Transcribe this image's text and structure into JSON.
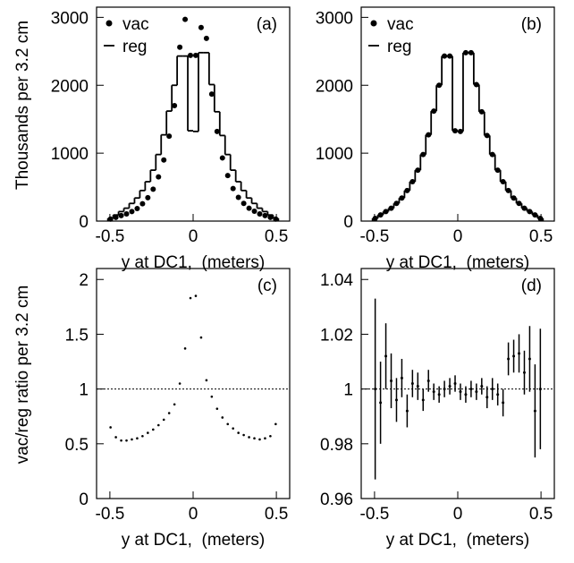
{
  "chart_data": [
    {
      "type": "histogram",
      "title": "(a)",
      "ylabel": "Thousands per 3.2 cm",
      "xlabel": "y at DC1,  (meters)",
      "xlim": [
        -0.58,
        0.58
      ],
      "xticks": [
        -0.5,
        0,
        0.5
      ],
      "ylim": [
        0,
        3150
      ],
      "yticks": [
        0,
        1000,
        2000,
        3000
      ],
      "bins": [
        -0.512,
        -0.48,
        -0.448,
        -0.416,
        -0.384,
        -0.352,
        -0.32,
        -0.288,
        -0.256,
        -0.224,
        -0.192,
        -0.16,
        -0.128,
        -0.096,
        -0.064,
        -0.032,
        0,
        0.032,
        0.064,
        0.096,
        0.128,
        0.16,
        0.192,
        0.224,
        0.256,
        0.288,
        0.32,
        0.352,
        0.384,
        0.416,
        0.448,
        0.48,
        0.512
      ],
      "series": [
        {
          "name": "vac",
          "style": "points",
          "color": "#000000",
          "values": [
            30,
            55,
            80,
            105,
            140,
            185,
            255,
            345,
            470,
            650,
            900,
            1250,
            1700,
            2560,
            2970,
            2440,
            2440,
            2850,
            2690,
            1870,
            1320,
            930,
            670,
            480,
            350,
            260,
            190,
            145,
            105,
            80,
            55,
            30
          ]
        },
        {
          "name": "reg",
          "style": "step",
          "color": "#000000",
          "values": [
            40,
            90,
            140,
            190,
            260,
            340,
            450,
            580,
            750,
            980,
            1270,
            1620,
            2000,
            2430,
            2430,
            1330,
            1320,
            2480,
            2480,
            2010,
            1610,
            1260,
            980,
            750,
            580,
            450,
            340,
            260,
            190,
            140,
            90,
            40
          ]
        }
      ]
    },
    {
      "type": "histogram",
      "title": "(b)",
      "xlabel": "y at DC1,  (meters)",
      "xlim": [
        -0.58,
        0.58
      ],
      "xticks": [
        -0.5,
        0,
        0.5
      ],
      "ylim": [
        0,
        3150
      ],
      "yticks": [
        0,
        1000,
        2000,
        3000
      ],
      "bins": [
        -0.512,
        -0.48,
        -0.448,
        -0.416,
        -0.384,
        -0.352,
        -0.32,
        -0.288,
        -0.256,
        -0.224,
        -0.192,
        -0.16,
        -0.128,
        -0.096,
        -0.064,
        -0.032,
        0,
        0.032,
        0.064,
        0.096,
        0.128,
        0.16,
        0.192,
        0.224,
        0.256,
        0.288,
        0.32,
        0.352,
        0.384,
        0.416,
        0.448,
        0.48,
        0.512
      ],
      "series": [
        {
          "name": "vac",
          "style": "points",
          "color": "#000000",
          "values": [
            40,
            90,
            140,
            190,
            260,
            340,
            450,
            580,
            750,
            980,
            1270,
            1620,
            2000,
            2430,
            2430,
            1330,
            1320,
            2480,
            2480,
            2010,
            1610,
            1260,
            980,
            750,
            580,
            450,
            340,
            260,
            190,
            140,
            90,
            40
          ]
        },
        {
          "name": "reg",
          "style": "step",
          "color": "#000000",
          "values": [
            40,
            90,
            140,
            190,
            260,
            340,
            450,
            580,
            750,
            980,
            1270,
            1620,
            2000,
            2430,
            2430,
            1330,
            1320,
            2480,
            2480,
            2010,
            1610,
            1260,
            980,
            750,
            580,
            450,
            340,
            260,
            190,
            140,
            90,
            40
          ]
        }
      ]
    },
    {
      "type": "scatter",
      "title": "(c)",
      "ylabel": "vac/reg ratio per 3.2 cm",
      "xlabel": "y at DC1,  (meters)",
      "xlim": [
        -0.58,
        0.58
      ],
      "xticks": [
        -0.5,
        0,
        0.5
      ],
      "ylim": [
        0,
        2.1
      ],
      "yticks": [
        0,
        0.5,
        1,
        1.5,
        2
      ],
      "refline": 1,
      "color": "#000000",
      "x": [
        -0.496,
        -0.464,
        -0.432,
        -0.4,
        -0.368,
        -0.336,
        -0.304,
        -0.272,
        -0.24,
        -0.208,
        -0.176,
        -0.144,
        -0.112,
        -0.08,
        -0.048,
        -0.016,
        0.016,
        0.048,
        0.08,
        0.112,
        0.144,
        0.176,
        0.208,
        0.24,
        0.272,
        0.304,
        0.336,
        0.368,
        0.4,
        0.432,
        0.464,
        0.496
      ],
      "values": [
        0.65,
        0.56,
        0.53,
        0.53,
        0.54,
        0.55,
        0.57,
        0.6,
        0.63,
        0.67,
        0.72,
        0.78,
        0.86,
        1.05,
        1.37,
        1.83,
        1.85,
        1.47,
        1.08,
        0.93,
        0.82,
        0.74,
        0.68,
        0.64,
        0.6,
        0.58,
        0.56,
        0.55,
        0.54,
        0.55,
        0.57,
        0.68
      ]
    },
    {
      "type": "errorbar",
      "title": "(d)",
      "xlabel": "y at DC1,  (meters)",
      "xlim": [
        -0.58,
        0.58
      ],
      "xticks": [
        -0.5,
        0,
        0.5
      ],
      "ylim": [
        0.96,
        1.044
      ],
      "yticks": [
        0.96,
        0.98,
        1,
        1.02,
        1.04
      ],
      "refline": 1,
      "color": "#000000",
      "x": [
        -0.496,
        -0.464,
        -0.432,
        -0.4,
        -0.368,
        -0.336,
        -0.304,
        -0.272,
        -0.24,
        -0.208,
        -0.176,
        -0.144,
        -0.112,
        -0.08,
        -0.048,
        -0.016,
        0.016,
        0.048,
        0.08,
        0.112,
        0.144,
        0.176,
        0.208,
        0.24,
        0.272,
        0.304,
        0.336,
        0.368,
        0.4,
        0.432,
        0.464,
        0.496
      ],
      "values": [
        1.0,
        0.995,
        1.012,
        1.003,
        0.996,
        1.004,
        0.992,
        1.002,
        1.001,
        0.996,
        1.003,
        0.999,
        0.998,
        1.0,
        1.001,
        1.002,
        0.999,
        0.998,
        1.0,
        0.999,
        1.001,
        0.997,
        1.0,
        0.998,
        0.995,
        1.011,
        1.012,
        1.013,
        1.006,
        1.011,
        0.992,
        1.0
      ],
      "errors": [
        0.033,
        0.015,
        0.012,
        0.01,
        0.008,
        0.007,
        0.006,
        0.005,
        0.005,
        0.004,
        0.004,
        0.003,
        0.003,
        0.003,
        0.003,
        0.003,
        0.003,
        0.003,
        0.003,
        0.003,
        0.003,
        0.004,
        0.004,
        0.004,
        0.005,
        0.006,
        0.006,
        0.007,
        0.008,
        0.012,
        0.017,
        0.022
      ]
    }
  ]
}
